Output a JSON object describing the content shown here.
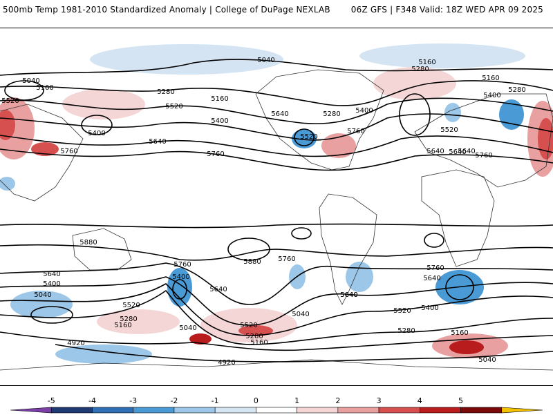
{
  "header": {
    "left_title": "500mb Temp 1981-2010 Standardized Anomaly | College of DuPage NEXLAB",
    "right_title": "06Z GFS | F348 Valid: 18Z WED APR 09 2025"
  },
  "map": {
    "projection": "global equirectangular",
    "field": "500mb temperature standardized anomaly (shaded)",
    "contours": "500mb geopotential height (black lines)",
    "height_labels": [
      "5040",
      "5160",
      "5520",
      "5400",
      "5760",
      "5280",
      "5640",
      "5520",
      "5160",
      "5400",
      "5640",
      "5760",
      "5040",
      "5160",
      "5280",
      "5640",
      "5280",
      "5400",
      "5520",
      "5760",
      "5640",
      "5160",
      "5280",
      "5400",
      "5520",
      "5640",
      "5760",
      "5880",
      "5880",
      "5760",
      "5760",
      "5760",
      "5640",
      "5400",
      "5640",
      "5400",
      "5040",
      "5640",
      "5520",
      "5280",
      "5160",
      "5040",
      "5520",
      "5280",
      "5160",
      "5040",
      "5640",
      "5520",
      "5400",
      "5640",
      "5280",
      "5160",
      "4920",
      "4920",
      "5040"
    ]
  },
  "colorbar": {
    "ticks": [
      "-5",
      "-4",
      "-3",
      "-2",
      "-1",
      "0",
      "1",
      "2",
      "3",
      "4",
      "5"
    ],
    "colors": [
      "#7b3fa8",
      "#1f3a73",
      "#2f6fb5",
      "#4a9ad6",
      "#9cc7e8",
      "#d4e4f2",
      "#ffffff",
      "#f5d6d6",
      "#e8a0a0",
      "#d65050",
      "#b81c1c",
      "#7a0a0a",
      "#f2c200"
    ]
  }
}
